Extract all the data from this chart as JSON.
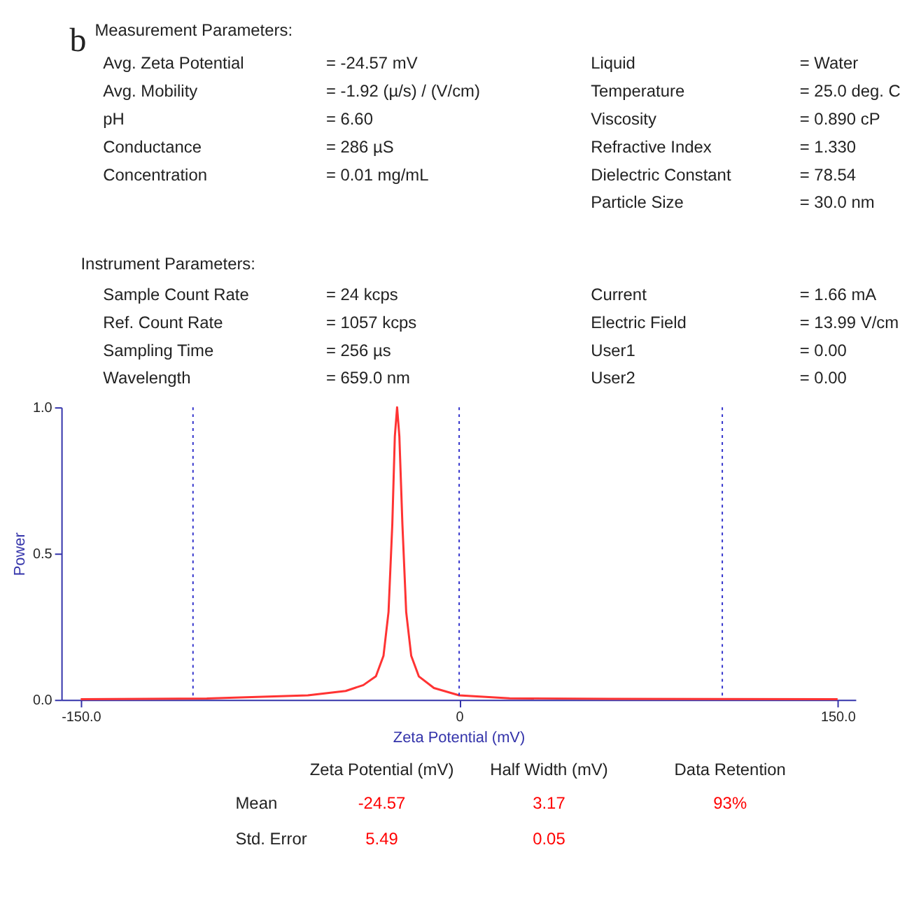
{
  "chart_data": {
    "type": "line",
    "xlabel": "Zeta Potential (mV)",
    "ylabel": "Power",
    "xlim": [
      -157.7,
      157.1
    ],
    "ylim": [
      0,
      1
    ],
    "xticks": [
      {
        "value": -150,
        "label": "-150.0"
      },
      0,
      {
        "value": 150,
        "label": "150.0"
      }
    ],
    "yticks": [
      {
        "value": 0,
        "label": "0.0"
      },
      {
        "value": 0.5,
        "label": "0.5"
      },
      {
        "value": 1,
        "label": "1.0"
      }
    ],
    "grid": false,
    "marker": "none",
    "line_style": "solid",
    "series": [
      {
        "color": "#ff3333",
        "x": [
          -150,
          -100,
          -60,
          -45,
          -38,
          -33,
          -30,
          -28,
          -26.5,
          -25.5,
          -24.6,
          -23.7,
          -22.5,
          -21,
          -19,
          -16,
          -10,
          0,
          20,
          60,
          150
        ],
        "values": [
          0.002,
          0.004,
          0.015,
          0.03,
          0.05,
          0.08,
          0.15,
          0.3,
          0.6,
          0.9,
          1.0,
          0.9,
          0.6,
          0.3,
          0.15,
          0.08,
          0.04,
          0.015,
          0.005,
          0.003,
          0.002
        ]
      }
    ],
    "ref_lines": [
      {
        "axis": "x",
        "value": -105.5,
        "color": "#3333cc",
        "line_style": "dotted"
      },
      {
        "axis": "x",
        "value": 0,
        "color": "#3333cc",
        "line_style": "dotted"
      },
      {
        "axis": "x",
        "value": 104.3,
        "color": "#3333cc",
        "line_style": "dotted"
      }
    ],
    "annotations": [
      "b",
      "Measurement Parameters:",
      "Avg. Zeta Potential",
      "= -24.57 mV",
      "Avg. Mobility",
      "= -1.92 (µ/s) / (V/cm)",
      "pH",
      "= 6.60",
      "Conductance",
      "= 286 µS",
      "Concentration",
      "= 0.01 mg/mL",
      "Liquid",
      "= Water",
      "Temperature",
      "= 25.0 deg. C",
      "Viscosity",
      "= 0.890 cP",
      "Refractive Index",
      "= 1.330",
      "Dielectric Constant",
      "= 78.54",
      "Particle Size",
      "= 30.0 nm",
      "Instrument Parameters:",
      "Sample Count Rate",
      "= 24 kcps",
      "Ref. Count Rate",
      "= 1057 kcps",
      "Sampling Time",
      "= 256 µs",
      "Wavelength",
      "= 659.0 nm",
      "Current",
      "= 1.66 mA",
      "Electric Field",
      "= 13.99 V/cm",
      "User1",
      "= 0.00",
      "User2",
      "= 0.00",
      "Zeta Potential (mV)",
      "Half Width (mV)",
      "Data Retention",
      "Mean",
      "-24.57",
      "3.17",
      "93%",
      "Std. Error",
      "5.49",
      "0.05"
    ]
  }
}
